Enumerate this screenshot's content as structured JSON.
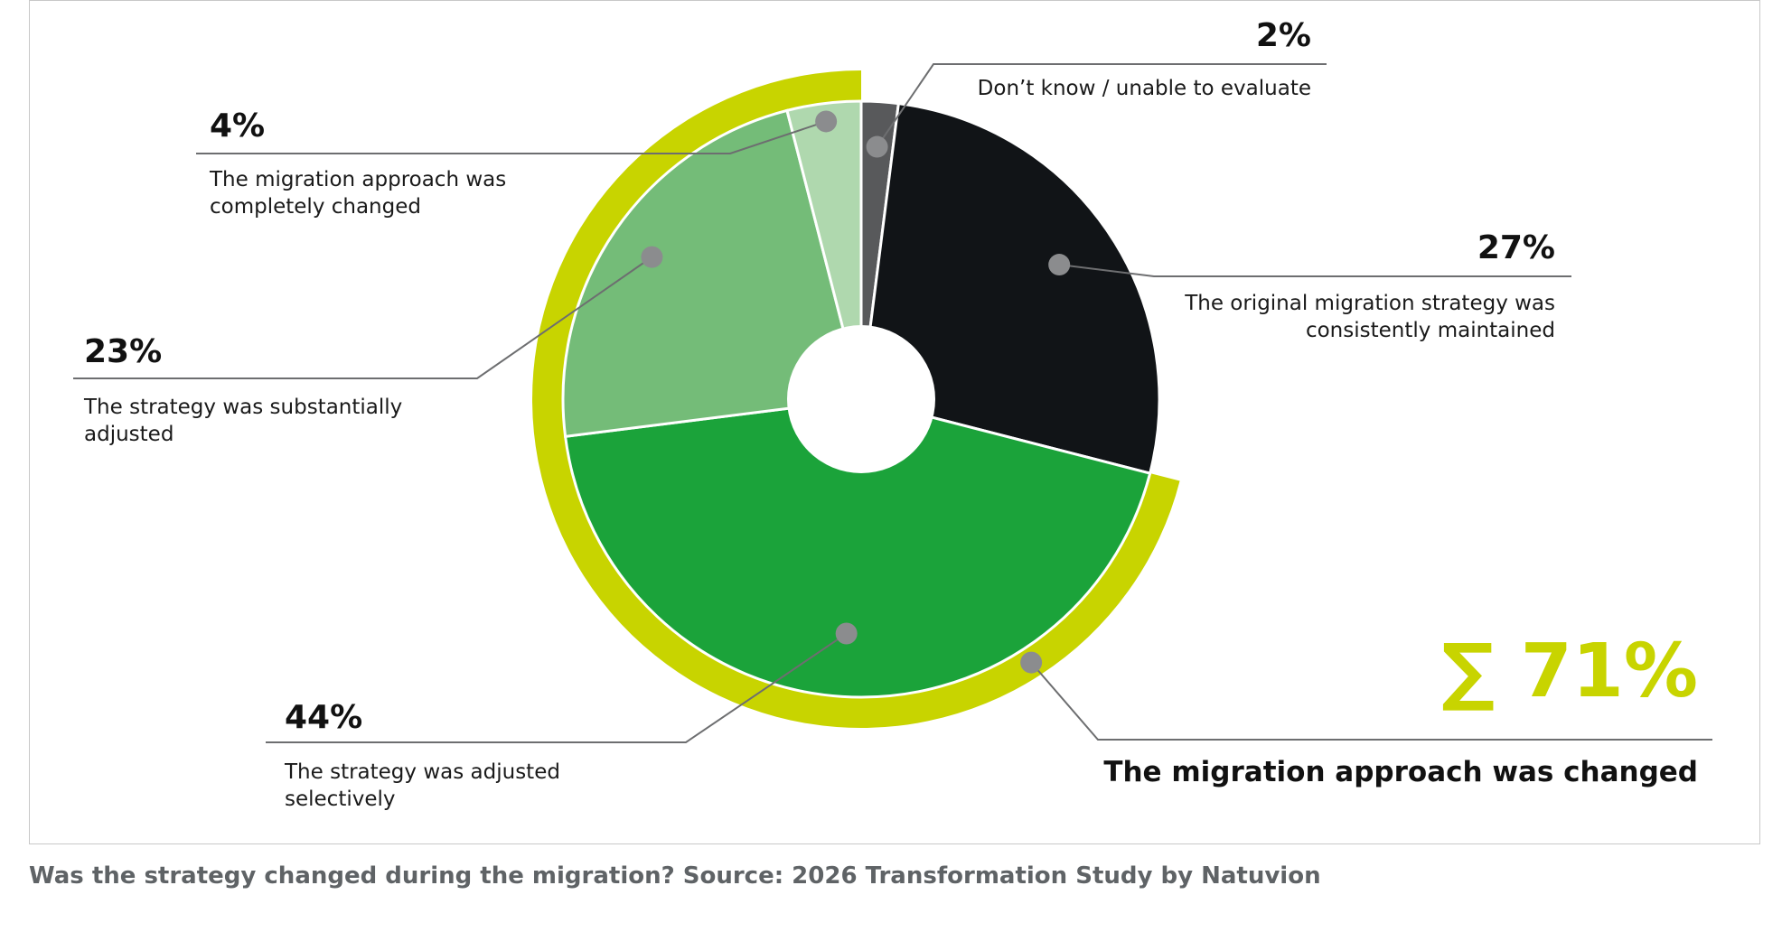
{
  "caption": "Was the strategy changed during the migration? Source: 2026 Transformation Study by Natuvion",
  "chart_data": {
    "type": "pie",
    "slices": [
      {
        "value": 2,
        "pct_label": "2%",
        "label_lines": [
          "Don’t know / unable to evaluate"
        ],
        "color": "#58595b"
      },
      {
        "value": 27,
        "pct_label": "27%",
        "label_lines": [
          "The original migration strategy was",
          "consistently maintained"
        ],
        "color": "#111417"
      },
      {
        "value": 44,
        "pct_label": "44%",
        "label_lines": [
          "The strategy was adjusted",
          "selectively"
        ],
        "color": "#1ba33a"
      },
      {
        "value": 23,
        "pct_label": "23%",
        "label_lines": [
          "The strategy was substantially",
          "adjusted"
        ],
        "color": "#74bc78"
      },
      {
        "value": 4,
        "pct_label": "4%",
        "label_lines": [
          "The migration approach was",
          "completely changed"
        ],
        "color": "#afd8ae"
      }
    ],
    "summary": {
      "value": 71,
      "pct_label": "∑ 71%",
      "label": "The migration approach was changed",
      "color": "#c8d400"
    },
    "connector_color": "#6d6e70",
    "dot_color": "#8b8c8e"
  }
}
